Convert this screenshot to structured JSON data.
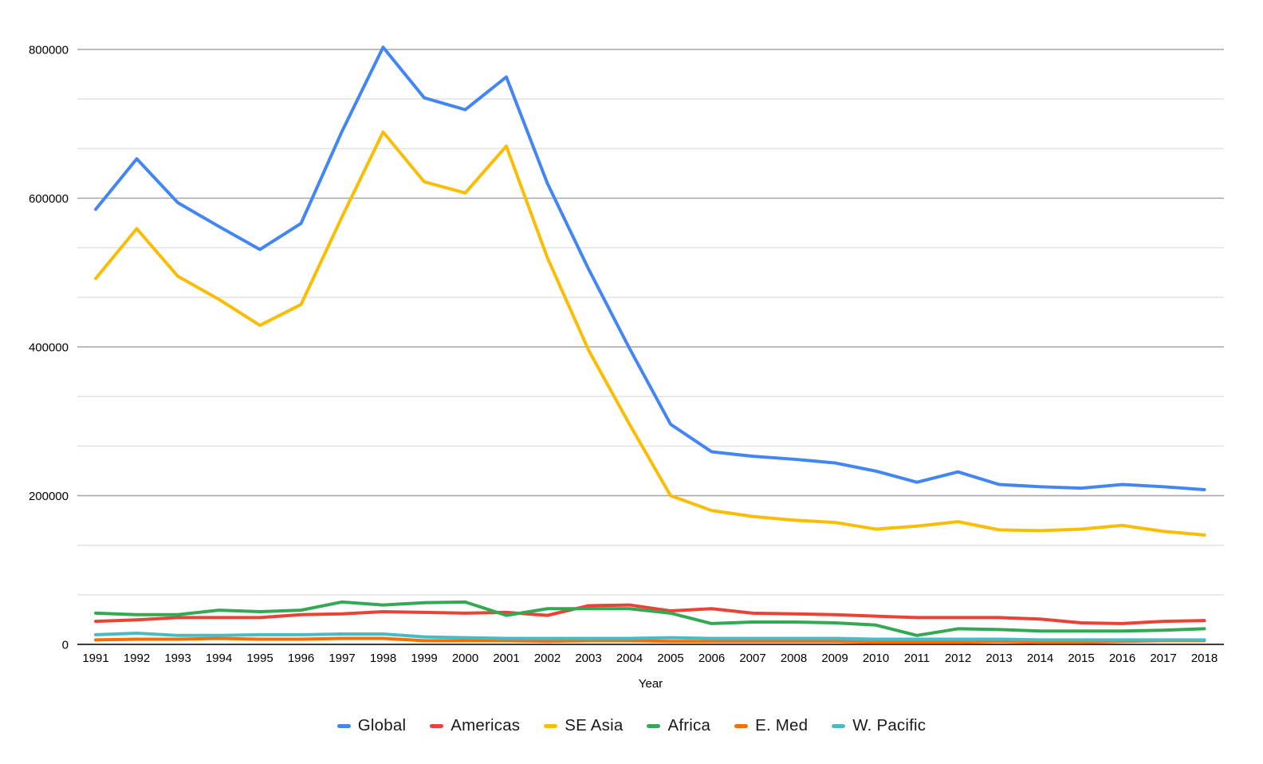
{
  "chart_data": {
    "type": "line",
    "title": "",
    "xlabel": "Year",
    "ylabel": "",
    "categories": [
      "1991",
      "1992",
      "1993",
      "1994",
      "1995",
      "1996",
      "1997",
      "1998",
      "1999",
      "2000",
      "2001",
      "2002",
      "2003",
      "2004",
      "2005",
      "2006",
      "2007",
      "2008",
      "2009",
      "2010",
      "2011",
      "2012",
      "2013",
      "2014",
      "2015",
      "2016",
      "2017",
      "2018"
    ],
    "y_ticks": [
      "0",
      "200000",
      "400000",
      "600000",
      "800000"
    ],
    "ylim": [
      0,
      800000
    ],
    "minor_gridlines_between_major": 2,
    "grid": true,
    "legend_position": "bottom",
    "series": [
      {
        "name": "Global",
        "color": "#4285F4",
        "values": [
          585000,
          653000,
          594000,
          562000,
          531000,
          566000,
          690000,
          803000,
          735000,
          719000,
          763000,
          620000,
          505000,
          398000,
          296000,
          259000,
          253000,
          249000,
          244000,
          233000,
          218000,
          232000,
          215000,
          212000,
          210000,
          215000,
          212000,
          208000
        ]
      },
      {
        "name": "Americas",
        "color": "#EA4335",
        "values": [
          31000,
          33000,
          36000,
          36000,
          36000,
          40000,
          41000,
          44000,
          43000,
          42000,
          43000,
          39000,
          52000,
          53000,
          45000,
          48000,
          42000,
          41000,
          40000,
          38000,
          36000,
          36000,
          36000,
          34000,
          29000,
          28000,
          31000,
          32000
        ]
      },
      {
        "name": "SE Asia",
        "color": "#FBBC04",
        "values": [
          492000,
          559000,
          495000,
          464000,
          429000,
          457000,
          575000,
          689000,
          622000,
          607000,
          670000,
          520000,
          396000,
          296000,
          200000,
          180000,
          172000,
          167000,
          164000,
          155000,
          159000,
          165000,
          154000,
          153000,
          155000,
          160000,
          152000,
          147000
        ]
      },
      {
        "name": "Africa",
        "color": "#34A853",
        "values": [
          42000,
          40000,
          40000,
          46000,
          44000,
          46000,
          57000,
          53000,
          56000,
          57000,
          39000,
          48000,
          48000,
          48000,
          42000,
          28000,
          30000,
          30000,
          29000,
          26000,
          12000,
          21000,
          20000,
          18000,
          18000,
          18000,
          19000,
          21000
        ]
      },
      {
        "name": "E. Med",
        "color": "#FF6D01",
        "values": [
          6000,
          7000,
          7000,
          8000,
          7000,
          7000,
          8000,
          8000,
          5000,
          5000,
          5000,
          4000,
          5000,
          5000,
          4000,
          4000,
          4000,
          4000,
          4000,
          3000,
          3000,
          3000,
          4000,
          3000,
          3000,
          4000,
          5000,
          5000
        ]
      },
      {
        "name": "W. Pacific",
        "color": "#46BDC6",
        "values": [
          13000,
          15000,
          12000,
          12000,
          13000,
          13000,
          14000,
          14000,
          10000,
          9000,
          8000,
          8000,
          8000,
          8000,
          9000,
          8000,
          8000,
          8000,
          8000,
          7000,
          7000,
          7000,
          7000,
          6000,
          6000,
          6000,
          6000,
          6000
        ]
      }
    ]
  },
  "colors": {
    "background": "#FFFFFF",
    "major_grid": "#A5A5A5",
    "minor_grid": "#E2E2E2",
    "zero_line": "#3B3B3B",
    "text": "#000000"
  }
}
